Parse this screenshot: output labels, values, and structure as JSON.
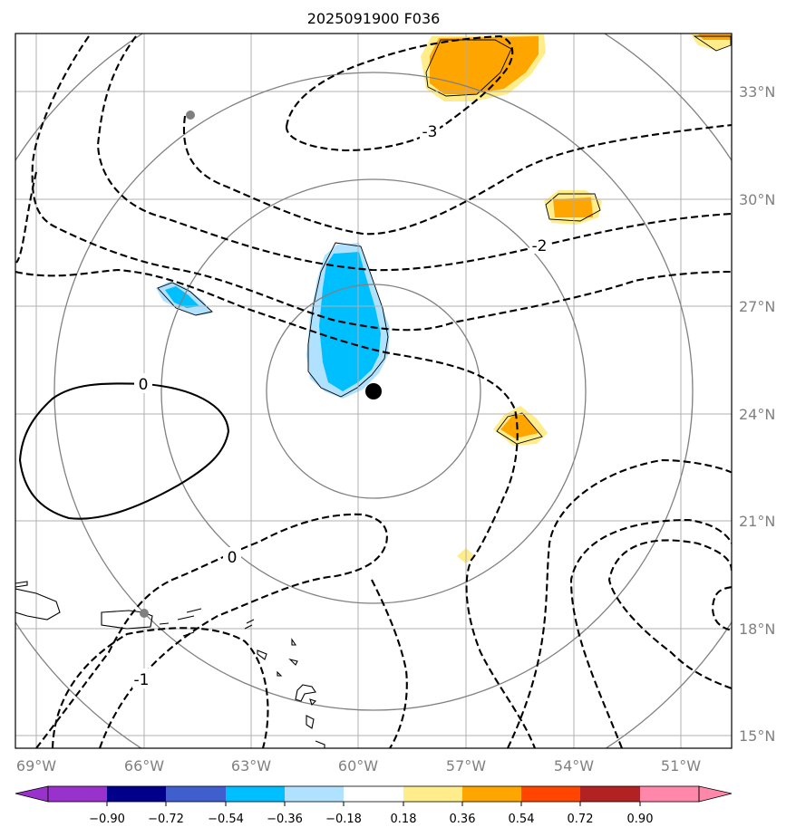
{
  "title": "2025091900 F036",
  "colors": {
    "grid": "#b0b0b0",
    "range_rings": "#808080",
    "tick_label": "#808080",
    "contour": "#000000",
    "center_marker": "#000000"
  },
  "lon_labels": [
    "69°W",
    "66°W",
    "63°W",
    "60°W",
    "57°W",
    "54°W",
    "51°W"
  ],
  "lat_labels": [
    "33°N",
    "30°N",
    "27°N",
    "24°N",
    "21°N",
    "18°N",
    "15°N"
  ],
  "contour_labels": [
    "-3",
    "-2",
    "0",
    "0",
    "-1"
  ],
  "storm_center": {
    "lon": -59.6,
    "lat": 24.6
  },
  "colorbar": {
    "tick_labels": [
      "−0.90",
      "−0.72",
      "−0.54",
      "−0.36",
      "−0.18",
      "0.18",
      "0.36",
      "0.54",
      "0.72",
      "0.90"
    ],
    "under_color": "#9932cc",
    "over_color": "#ff88aa",
    "colors": [
      "#00008b",
      "#3f5fcf",
      "#00bfff",
      "#b0e2ff",
      "#ffffff",
      "#ffec8b",
      "#ffa500",
      "#ff4500",
      "#b22222"
    ]
  }
}
